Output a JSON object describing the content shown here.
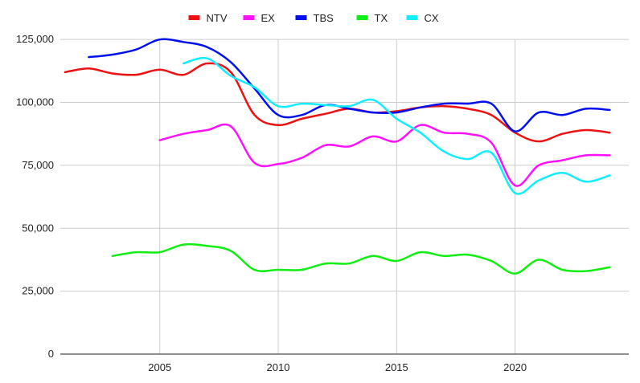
{
  "chart_data": {
    "type": "line",
    "title": "",
    "xlabel": "",
    "ylabel": "",
    "xlim": [
      2000.8,
      2024.8
    ],
    "ylim": [
      0,
      137500
    ],
    "x_ticks": [
      2005,
      2010,
      2015,
      2020
    ],
    "y_ticks": [
      0,
      25000,
      50000,
      75000,
      100000,
      125000
    ],
    "y_tick_labels": [
      "0",
      "25,000",
      "50,000",
      "75,000",
      "100,000",
      "125,000"
    ],
    "grid": true,
    "legend": "top",
    "series": [
      {
        "name": "NTV",
        "color": "#ee1111",
        "points": [
          [
            2001,
            112000
          ],
          [
            2002,
            113500
          ],
          [
            2003,
            111500
          ],
          [
            2004,
            111000
          ],
          [
            2005,
            113000
          ],
          [
            2006,
            111000
          ],
          [
            2007,
            115500
          ],
          [
            2008,
            112000
          ],
          [
            2009,
            95000
          ],
          [
            2010,
            91000
          ],
          [
            2011,
            93500
          ],
          [
            2012,
            95500
          ],
          [
            2013,
            97500
          ],
          [
            2014,
            96000
          ],
          [
            2015,
            96500
          ],
          [
            2016,
            98000
          ],
          [
            2017,
            98500
          ],
          [
            2018,
            97500
          ],
          [
            2019,
            95000
          ],
          [
            2020,
            88000
          ],
          [
            2021,
            84500
          ],
          [
            2022,
            87500
          ],
          [
            2023,
            89000
          ],
          [
            2024,
            88000
          ]
        ]
      },
      {
        "name": "EX",
        "color": "#ff11ff",
        "points": [
          [
            2005,
            85000
          ],
          [
            2006,
            87500
          ],
          [
            2007,
            89000
          ],
          [
            2008,
            90500
          ],
          [
            2009,
            76000
          ],
          [
            2010,
            75500
          ],
          [
            2011,
            78000
          ],
          [
            2012,
            83000
          ],
          [
            2013,
            82500
          ],
          [
            2014,
            86500
          ],
          [
            2015,
            84500
          ],
          [
            2016,
            91000
          ],
          [
            2017,
            88000
          ],
          [
            2018,
            87500
          ],
          [
            2019,
            84000
          ],
          [
            2020,
            67000
          ],
          [
            2021,
            75000
          ],
          [
            2022,
            77000
          ],
          [
            2023,
            79000
          ],
          [
            2024,
            79000
          ]
        ]
      },
      {
        "name": "TBS",
        "color": "#0011ee",
        "points": [
          [
            2002,
            118000
          ],
          [
            2003,
            119000
          ],
          [
            2004,
            121000
          ],
          [
            2005,
            125000
          ],
          [
            2006,
            124000
          ],
          [
            2007,
            122000
          ],
          [
            2008,
            116000
          ],
          [
            2009,
            105500
          ],
          [
            2010,
            95000
          ],
          [
            2011,
            95000
          ],
          [
            2012,
            99000
          ],
          [
            2013,
            97500
          ],
          [
            2014,
            96000
          ],
          [
            2015,
            96000
          ],
          [
            2016,
            98000
          ],
          [
            2017,
            99500
          ],
          [
            2018,
            99500
          ],
          [
            2019,
            99500
          ],
          [
            2020,
            88500
          ],
          [
            2021,
            96000
          ],
          [
            2022,
            95000
          ],
          [
            2023,
            97500
          ],
          [
            2024,
            97000
          ]
        ]
      },
      {
        "name": "TX",
        "color": "#11ee11",
        "points": [
          [
            2003,
            39000
          ],
          [
            2004,
            40500
          ],
          [
            2005,
            40500
          ],
          [
            2006,
            43500
          ],
          [
            2007,
            43000
          ],
          [
            2008,
            41000
          ],
          [
            2009,
            33500
          ],
          [
            2010,
            33500
          ],
          [
            2011,
            33500
          ],
          [
            2012,
            36000
          ],
          [
            2013,
            36000
          ],
          [
            2014,
            39000
          ],
          [
            2015,
            37000
          ],
          [
            2016,
            40500
          ],
          [
            2017,
            39000
          ],
          [
            2018,
            39500
          ],
          [
            2019,
            37000
          ],
          [
            2020,
            32000
          ],
          [
            2021,
            37500
          ],
          [
            2022,
            33500
          ],
          [
            2023,
            33000
          ],
          [
            2024,
            34500
          ]
        ]
      },
      {
        "name": "CX",
        "color": "#11eeff",
        "points": [
          [
            2006,
            115500
          ],
          [
            2007,
            117500
          ],
          [
            2008,
            110500
          ],
          [
            2009,
            106000
          ],
          [
            2010,
            98500
          ],
          [
            2011,
            99500
          ],
          [
            2012,
            99000
          ],
          [
            2013,
            98500
          ],
          [
            2014,
            101000
          ],
          [
            2015,
            93500
          ],
          [
            2016,
            88000
          ],
          [
            2017,
            80500
          ],
          [
            2018,
            77500
          ],
          [
            2019,
            80000
          ],
          [
            2020,
            64000
          ],
          [
            2021,
            69000
          ],
          [
            2022,
            72000
          ],
          [
            2023,
            68500
          ],
          [
            2024,
            71000
          ]
        ]
      }
    ]
  }
}
